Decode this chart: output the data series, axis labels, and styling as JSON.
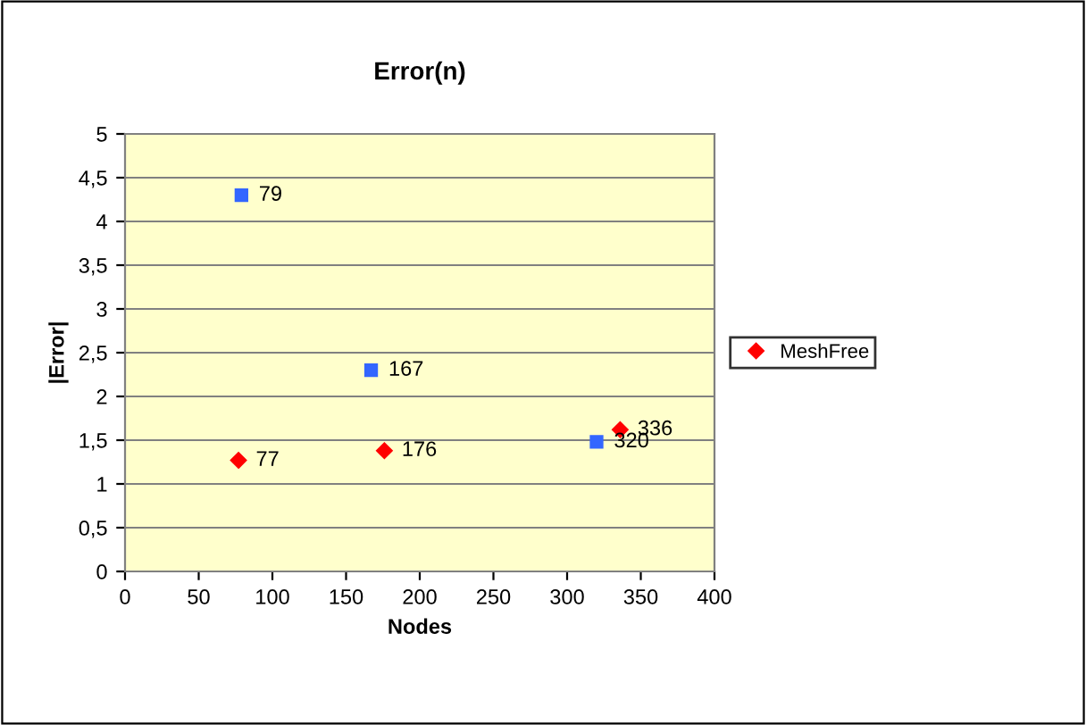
{
  "chart_data": {
    "type": "scatter",
    "title": "Error(n)",
    "xlabel": "Nodes",
    "ylabel": "|Error|",
    "series": [
      {
        "name": "MeshFree",
        "color": "#ff0000",
        "marker": "diamond",
        "x": [
          77,
          176,
          336
        ],
        "values": [
          1.27,
          1.38,
          1.62
        ]
      },
      {
        "color": "#3366ff",
        "marker": "square",
        "x": [
          79,
          167,
          320
        ],
        "values": [
          4.3,
          2.3,
          1.48
        ]
      }
    ],
    "annotations": [
      {
        "text": "77",
        "x": 77,
        "y": 1.27
      },
      {
        "text": "176",
        "x": 176,
        "y": 1.38
      },
      {
        "text": "336",
        "x": 336,
        "y": 1.62
      },
      {
        "text": "79",
        "x": 79,
        "y": 4.3
      },
      {
        "text": "167",
        "x": 167,
        "y": 2.3
      },
      {
        "text": "320",
        "x": 320,
        "y": 1.48
      }
    ],
    "xlim": [
      0,
      400
    ],
    "xticks": [
      0,
      50,
      100,
      150,
      200,
      250,
      300,
      350,
      400
    ],
    "ylim": [
      0,
      5
    ],
    "yticks": [
      0,
      {
        "value": 0.5,
        "label": "0,5"
      },
      1,
      {
        "value": 1.5,
        "label": "1,5"
      },
      2,
      {
        "value": 2.5,
        "label": "2,5"
      },
      3,
      {
        "value": 3.5,
        "label": "3,5"
      },
      4,
      {
        "value": 4.5,
        "label": "4,5"
      },
      5
    ],
    "grid": "y",
    "legend": "right"
  }
}
